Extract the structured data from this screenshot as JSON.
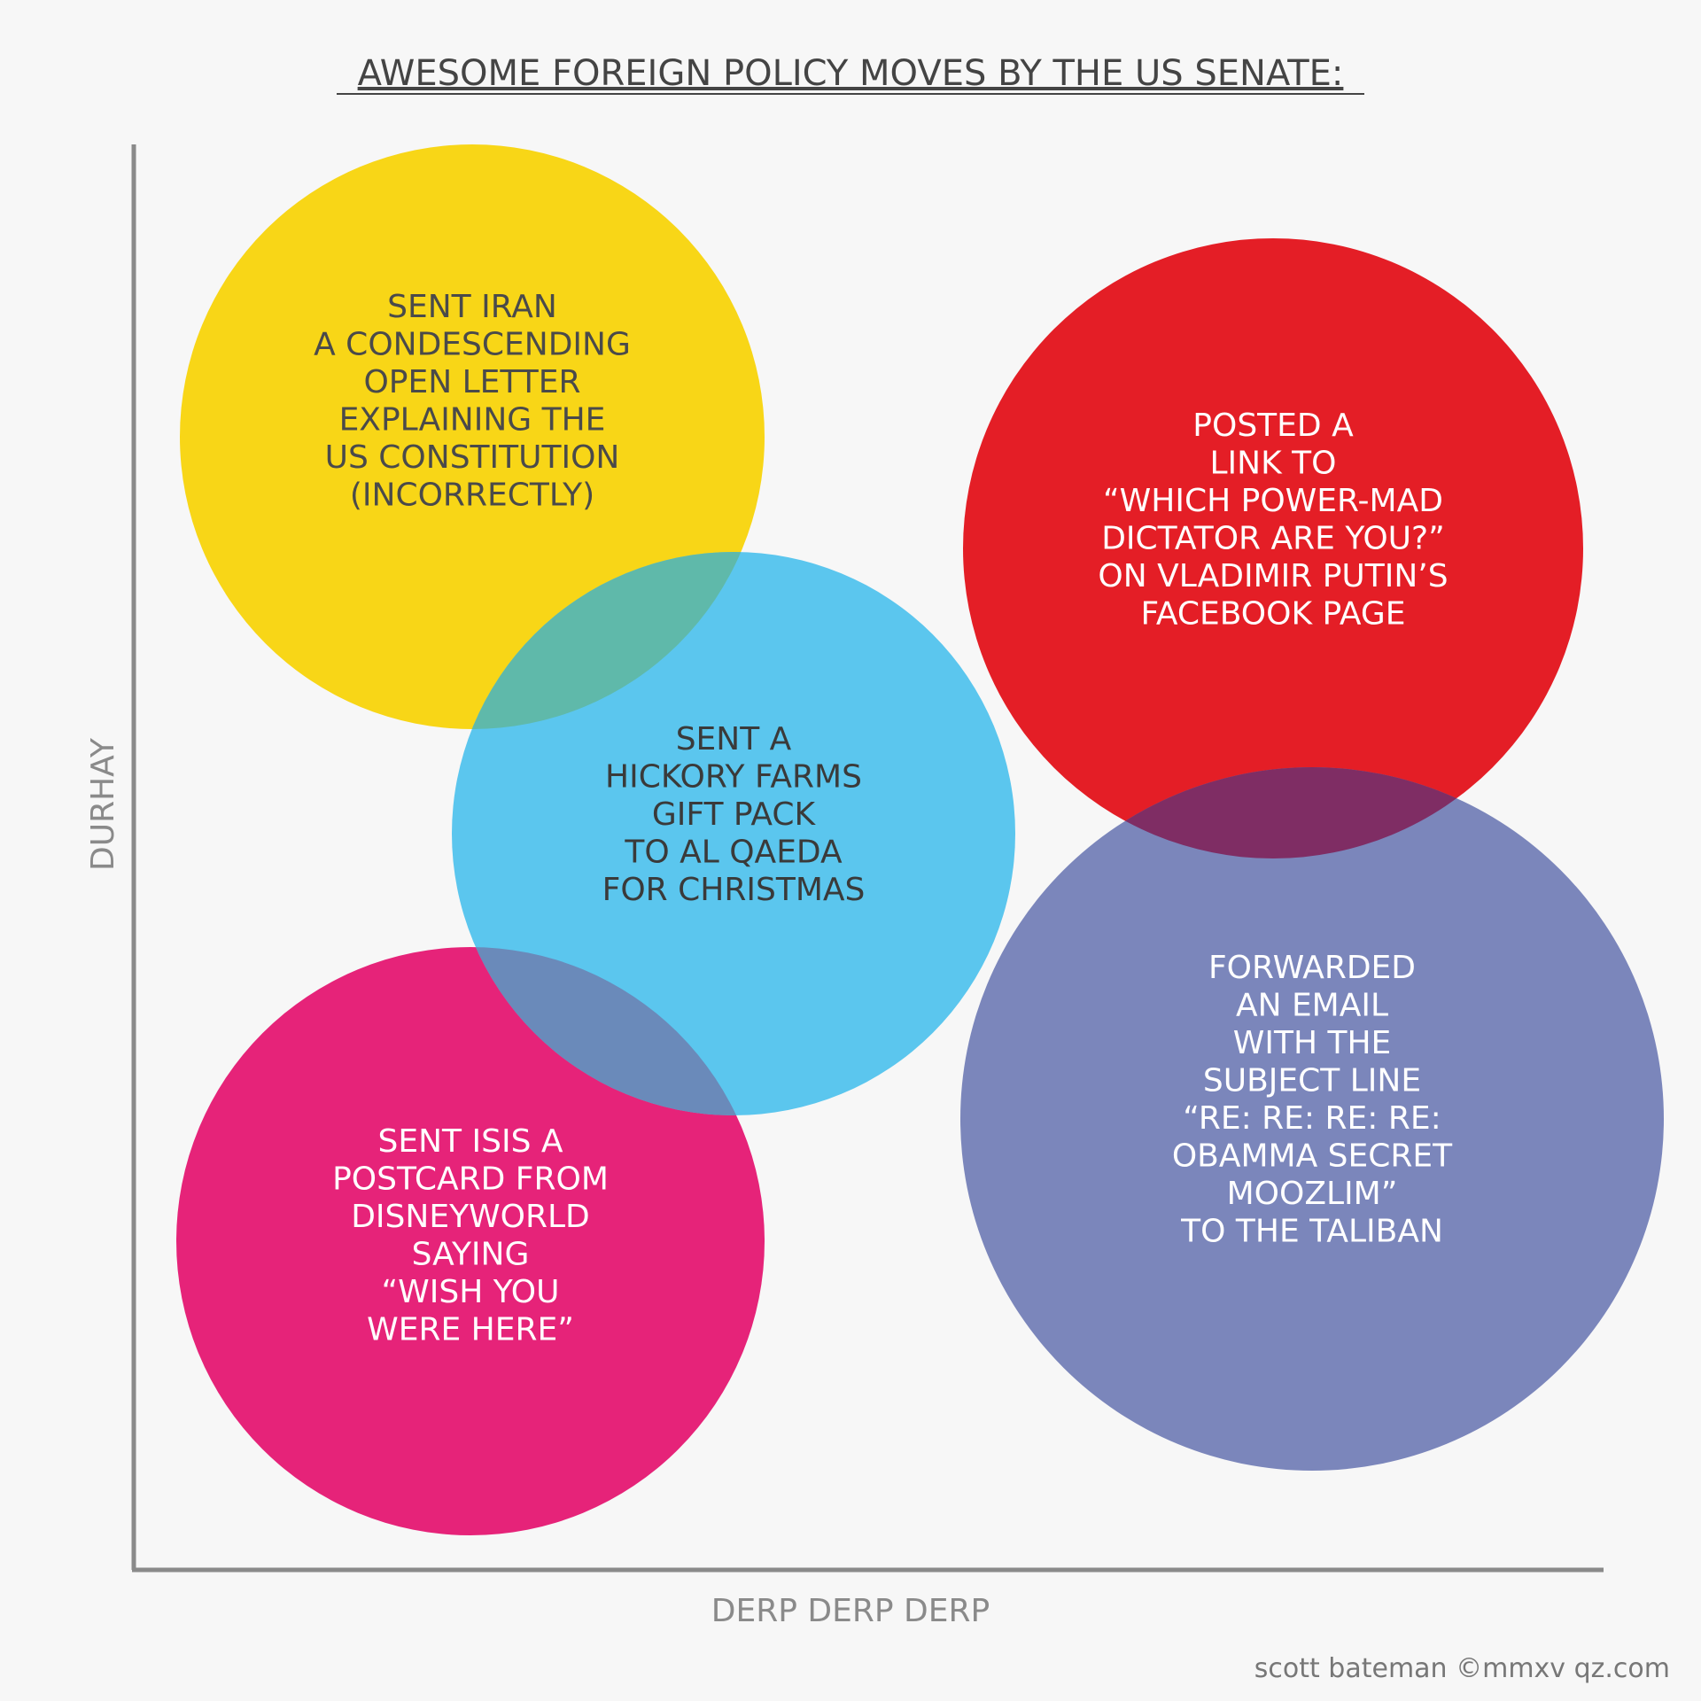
{
  "title": "AWESOME FOREIGN POLICY MOVES BY THE US SENATE:",
  "axes": {
    "x_label": "DERP DERP DERP",
    "y_label": "DURHAY",
    "color": "#8a8a8a"
  },
  "credit": "scott bateman ©mmxv qz.com",
  "bubbles": [
    {
      "name": "bubble-iran",
      "color": "#f8d617",
      "text_color": "#4a4a4a",
      "lines": [
        "SENT IRAN",
        "A CONDESCENDING",
        "OPEN LETTER",
        "EXPLAINING THE",
        "US CONSTITUTION",
        "(INCORRECTLY)"
      ]
    },
    {
      "name": "bubble-putin",
      "color": "#e41e26",
      "text_color": "#ffffff",
      "lines": [
        "POSTED A",
        "LINK TO",
        "“WHICH POWER-MAD",
        "DICTATOR ARE YOU?”",
        "ON VLADIMIR PUTIN’S",
        "FACEBOOK PAGE"
      ]
    },
    {
      "name": "bubble-isis",
      "color": "#e62379",
      "text_color": "#ffffff",
      "lines": [
        "SENT ISIS A",
        "POSTCARD FROM",
        "DISNEYWORLD",
        "SAYING",
        "“WISH YOU",
        "WERE HERE”"
      ]
    },
    {
      "name": "bubble-taliban",
      "color": "#7b86bb",
      "text_color": "#ffffff",
      "lines": [
        "FORWARDED",
        "AN EMAIL",
        "WITH THE",
        "SUBJECT LINE",
        "“RE: RE: RE: RE:",
        "OBAMMA SECRET",
        "MOOZLIM”",
        "TO THE TALIBAN"
      ]
    },
    {
      "name": "bubble-alqaeda",
      "color": "#5bc6ee",
      "text_color": "#3a3a3a",
      "lines": [
        "SENT A",
        "HICKORY FARMS",
        "GIFT PACK",
        "TO AL QAEDA",
        "FOR CHRISTMAS"
      ]
    }
  ],
  "overlaps": [
    {
      "name": "overlap-iran-alqaeda",
      "color": "#5fb9aa"
    },
    {
      "name": "overlap-isis-alqaeda",
      "color": "#6a8aba"
    },
    {
      "name": "overlap-putin-taliban",
      "color": "#7f2d64"
    }
  ]
}
